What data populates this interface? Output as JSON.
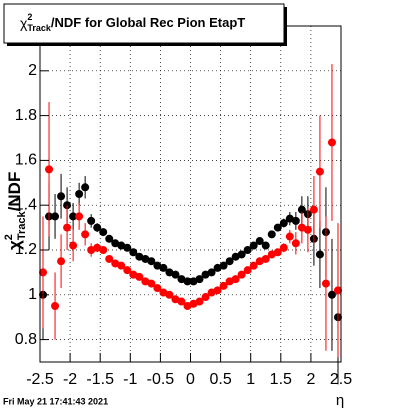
{
  "chart_data": {
    "type": "scatter",
    "title": {
      "symbol": "χ",
      "sup": "2",
      "sub": "Track",
      "text": "/NDF for Global Rec Pion EtapT"
    },
    "ylabel": {
      "symbol": "χ",
      "sup": "2",
      "sub": "Track",
      "text": "/NDF"
    },
    "xlabel": "η",
    "footer": "Fri May 21 17:41:43 2021",
    "xlim": [
      -2.5,
      2.5
    ],
    "ylim": [
      0.7,
      2.2
    ],
    "xticks": [
      -2.5,
      -2,
      -1.5,
      -1,
      -0.5,
      0,
      0.5,
      1,
      1.5,
      2,
      2.5
    ],
    "yticks": [
      0.8,
      1,
      1.2,
      1.4,
      1.6,
      1.8,
      2
    ],
    "grid": true,
    "x": [
      -2.45,
      -2.35,
      -2.25,
      -2.15,
      -2.05,
      -1.95,
      -1.85,
      -1.75,
      -1.65,
      -1.55,
      -1.45,
      -1.35,
      -1.25,
      -1.15,
      -1.05,
      -0.95,
      -0.85,
      -0.75,
      -0.65,
      -0.55,
      -0.45,
      -0.35,
      -0.25,
      -0.15,
      -0.05,
      0.05,
      0.15,
      0.25,
      0.35,
      0.45,
      0.55,
      0.65,
      0.75,
      0.85,
      0.95,
      1.05,
      1.15,
      1.25,
      1.35,
      1.45,
      1.55,
      1.65,
      1.75,
      1.85,
      1.95,
      2.05,
      2.15,
      2.25,
      2.35,
      2.45
    ],
    "series": [
      {
        "color": "#000000",
        "values": [
          1.0,
          1.35,
          1.35,
          1.44,
          1.4,
          1.35,
          1.45,
          1.48,
          1.33,
          1.3,
          1.28,
          1.25,
          1.23,
          1.22,
          1.21,
          1.19,
          1.17,
          1.16,
          1.15,
          1.13,
          1.12,
          1.1,
          1.09,
          1.07,
          1.06,
          1.06,
          1.07,
          1.09,
          1.1,
          1.12,
          1.13,
          1.15,
          1.17,
          1.18,
          1.2,
          1.22,
          1.24,
          1.22,
          1.27,
          1.3,
          1.32,
          1.34,
          1.33,
          1.38,
          1.36,
          1.25,
          1.18,
          1.28,
          1.0,
          0.9
        ],
        "errors": [
          0.2,
          0.15,
          0.1,
          0.1,
          0.08,
          0.06,
          0.05,
          0.05,
          0.03,
          0.02,
          0.01,
          0.01,
          0.01,
          0.01,
          0.01,
          0.01,
          0.01,
          0.01,
          0.01,
          0.01,
          0.01,
          0.01,
          0.01,
          0.01,
          0.01,
          0.01,
          0.01,
          0.01,
          0.01,
          0.01,
          0.01,
          0.01,
          0.01,
          0.01,
          0.01,
          0.01,
          0.01,
          0.01,
          0.01,
          0.01,
          0.02,
          0.03,
          0.04,
          0.06,
          0.08,
          0.12,
          0.15,
          0.2,
          0.25,
          0.3
        ]
      },
      {
        "color": "#ff0000",
        "values": [
          1.1,
          1.56,
          0.95,
          1.15,
          1.3,
          1.22,
          1.35,
          1.27,
          1.2,
          1.21,
          1.2,
          1.16,
          1.14,
          1.13,
          1.11,
          1.09,
          1.08,
          1.06,
          1.05,
          1.03,
          1.01,
          1.0,
          0.98,
          0.97,
          0.95,
          0.96,
          0.97,
          0.99,
          1.01,
          1.02,
          1.04,
          1.06,
          1.07,
          1.09,
          1.11,
          1.13,
          1.15,
          1.16,
          1.18,
          1.19,
          1.21,
          1.26,
          1.23,
          1.3,
          1.29,
          1.38,
          1.55,
          1.05,
          1.68,
          1.02
        ],
        "errors": [
          0.25,
          0.3,
          0.15,
          0.12,
          0.1,
          0.07,
          0.06,
          0.05,
          0.03,
          0.02,
          0.01,
          0.01,
          0.01,
          0.01,
          0.01,
          0.01,
          0.01,
          0.01,
          0.01,
          0.01,
          0.01,
          0.01,
          0.01,
          0.01,
          0.01,
          0.01,
          0.01,
          0.01,
          0.01,
          0.01,
          0.01,
          0.01,
          0.01,
          0.01,
          0.01,
          0.01,
          0.01,
          0.01,
          0.01,
          0.01,
          0.02,
          0.03,
          0.05,
          0.07,
          0.1,
          0.15,
          0.25,
          0.3,
          0.35,
          0.3
        ]
      }
    ]
  }
}
